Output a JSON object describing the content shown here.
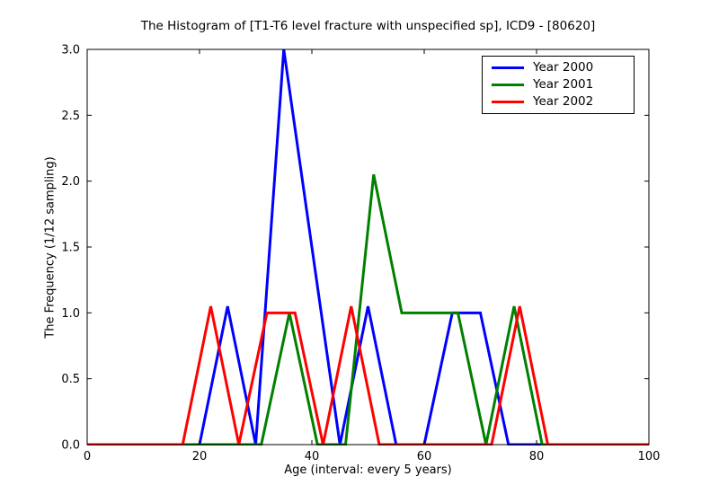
{
  "title": "The Histogram of [T1-T6 level fracture with unspecified sp], ICD9 - [80620]",
  "legend": {
    "items": [
      {
        "label": "Year 2000",
        "color": "#0000ff"
      },
      {
        "label": "Year 2001",
        "color": "#008000"
      },
      {
        "label": "Year 2002",
        "color": "#ff0000"
      }
    ]
  },
  "chart_data": {
    "type": "line",
    "title": "The Histogram of [T1-T6 level fracture with unspecified sp], ICD9 - [80620]",
    "xlabel": "Age (interval: every 5 years)",
    "ylabel": "The Frequency (1/12 sampling)",
    "xlim": [
      0,
      100
    ],
    "ylim": [
      0,
      3.0
    ],
    "x_ticks": [
      "0",
      "20",
      "40",
      "60",
      "80",
      "100"
    ],
    "x_tick_values": [
      0,
      20,
      40,
      60,
      80,
      100
    ],
    "y_ticks": [
      "0.0",
      "0.5",
      "1.0",
      "1.5",
      "2.0",
      "2.5",
      "3.0"
    ],
    "y_tick_values": [
      0,
      0.5,
      1.0,
      1.5,
      2.0,
      2.5,
      3.0
    ],
    "grid": false,
    "legend_position": "upper right",
    "bin_interval_years": 5,
    "series": [
      {
        "name": "Year 2000",
        "color": "#0000ff",
        "x": [
          0,
          5,
          10,
          15,
          20,
          25,
          30,
          35,
          40,
          45,
          50,
          55,
          60,
          65,
          70,
          75,
          80,
          85,
          90,
          95,
          100
        ],
        "y": [
          0,
          0,
          0,
          0,
          0,
          1.05,
          0,
          3.0,
          1.5,
          0,
          1.05,
          0,
          0,
          1.0,
          1.0,
          0,
          0,
          0,
          0,
          0,
          0
        ]
      },
      {
        "name": "Year 2001",
        "color": "#008000",
        "x": [
          0,
          1,
          6,
          11,
          16,
          21,
          26,
          31,
          36,
          41,
          46,
          51,
          56,
          61,
          66,
          71,
          76,
          81,
          86,
          91,
          96,
          100
        ],
        "y": [
          0,
          0,
          0,
          0,
          0,
          0,
          0,
          0,
          1.0,
          0,
          0,
          2.05,
          1.0,
          1.0,
          1.0,
          0,
          1.05,
          0,
          0,
          0,
          0,
          0
        ]
      },
      {
        "name": "Year 2002",
        "color": "#ff0000",
        "x": [
          0,
          2,
          7,
          12,
          17,
          22,
          27,
          32,
          37,
          42,
          47,
          52,
          57,
          62,
          67,
          72,
          77,
          82,
          87,
          92,
          97,
          100
        ],
        "y": [
          0,
          0,
          0,
          0,
          0,
          1.05,
          0,
          1.0,
          1.0,
          0,
          1.05,
          0,
          0,
          0,
          0,
          0,
          1.05,
          0,
          0,
          0,
          0,
          0
        ]
      }
    ]
  }
}
